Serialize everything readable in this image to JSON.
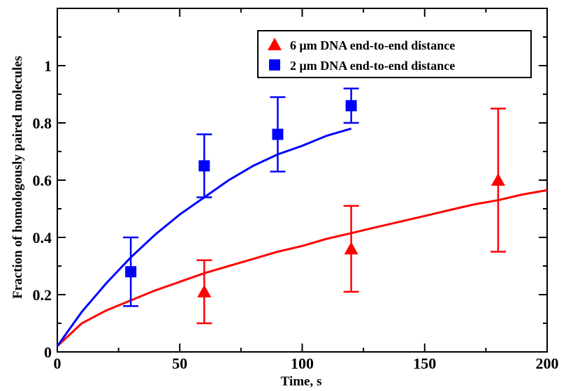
{
  "chart_data": {
    "type": "scatter",
    "xlabel": "Time, s",
    "ylabel": "Fraction of homologously paired molecules",
    "xlim": [
      0,
      200
    ],
    "ylim": [
      0,
      1.2
    ],
    "x_ticks": [
      "0",
      "50",
      "100",
      "150",
      "200"
    ],
    "y_ticks": [
      "0",
      "0.2",
      "0.4",
      "0.6",
      "0.8",
      "1"
    ],
    "legend_position": "top-right",
    "series": [
      {
        "name": "6 μm DNA end-to-end distance",
        "marker": "triangle",
        "color": "#ff0000",
        "points": [
          {
            "x": 60,
            "y": 0.21,
            "err_low": 0.1,
            "err_high": 0.32
          },
          {
            "x": 120,
            "y": 0.36,
            "err_low": 0.21,
            "err_high": 0.51
          },
          {
            "x": 180,
            "y": 0.6,
            "err_low": 0.35,
            "err_high": 0.85
          }
        ],
        "fit": {
          "color": "#ff0000",
          "x": [
            0,
            10,
            20,
            30,
            40,
            50,
            60,
            70,
            80,
            90,
            100,
            110,
            120,
            130,
            140,
            150,
            160,
            170,
            180,
            190,
            200
          ],
          "y": [
            0.02,
            0.1,
            0.145,
            0.18,
            0.215,
            0.245,
            0.275,
            0.3,
            0.325,
            0.35,
            0.37,
            0.395,
            0.415,
            0.435,
            0.455,
            0.475,
            0.495,
            0.515,
            0.53,
            0.55,
            0.565
          ]
        }
      },
      {
        "name": "2 μm DNA end-to-end distance",
        "marker": "square",
        "color": "#0000ff",
        "points": [
          {
            "x": 30,
            "y": 0.28,
            "err_low": 0.16,
            "err_high": 0.4
          },
          {
            "x": 60,
            "y": 0.65,
            "err_low": 0.54,
            "err_high": 0.76
          },
          {
            "x": 90,
            "y": 0.76,
            "err_low": 0.63,
            "err_high": 0.89
          },
          {
            "x": 120,
            "y": 0.86,
            "err_low": 0.8,
            "err_high": 0.92
          }
        ],
        "fit": {
          "color": "#0000ff",
          "x": [
            0,
            10,
            20,
            30,
            40,
            50,
            60,
            70,
            80,
            90,
            100,
            110,
            120
          ],
          "y": [
            0.02,
            0.14,
            0.24,
            0.33,
            0.41,
            0.48,
            0.54,
            0.6,
            0.65,
            0.69,
            0.72,
            0.755,
            0.78
          ]
        }
      }
    ]
  }
}
